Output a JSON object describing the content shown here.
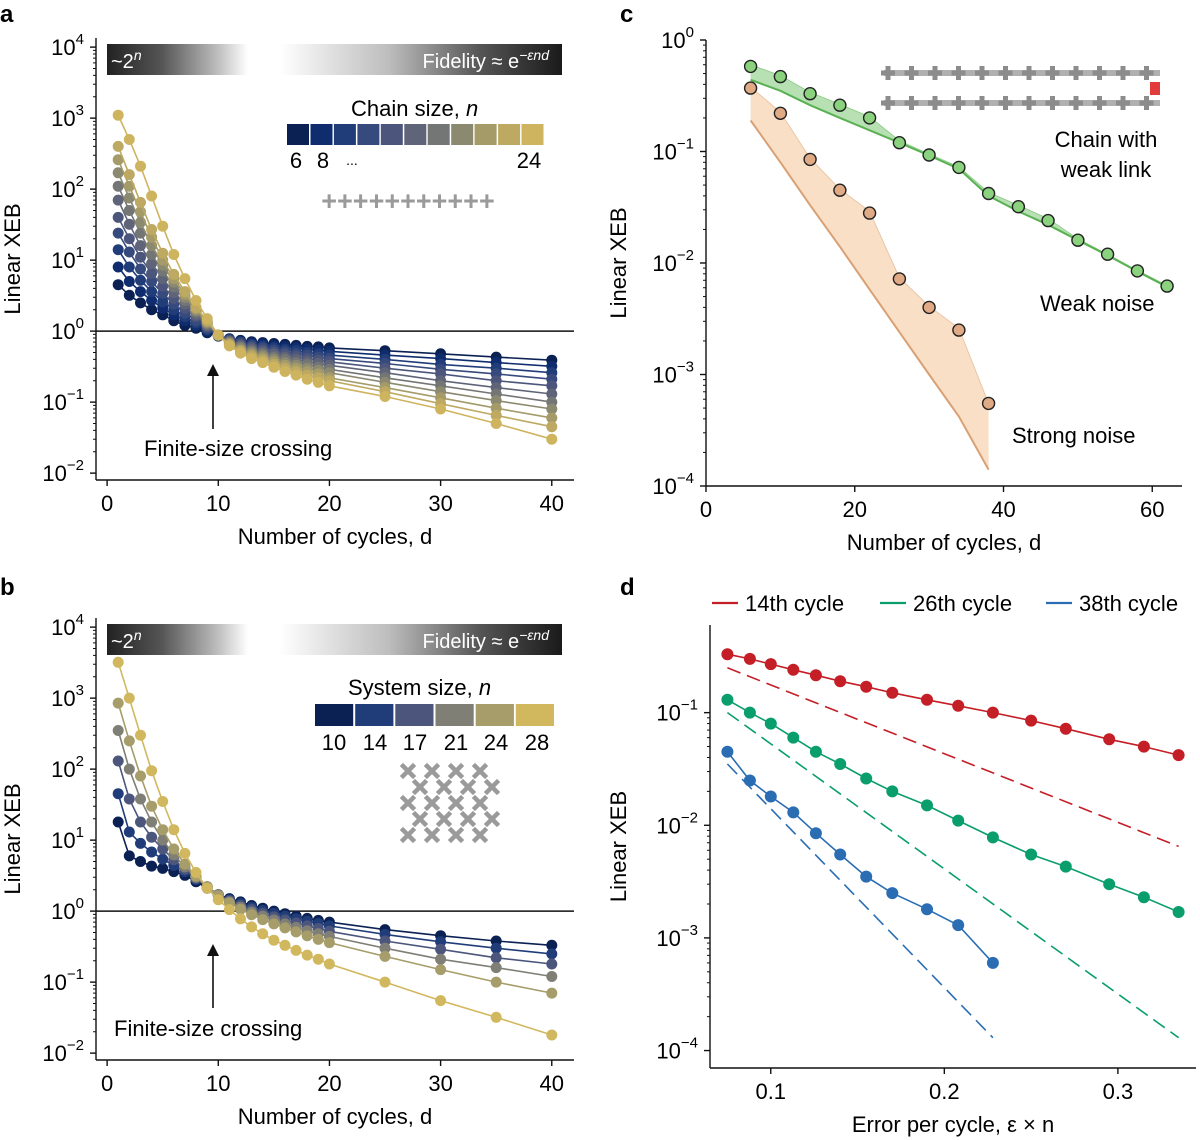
{
  "colors": {
    "panel_a_palette": [
      "#0b2153",
      "#0f2d6e",
      "#213d79",
      "#374a7d",
      "#4c567c",
      "#5f6478",
      "#737674",
      "#8b8970",
      "#a49b69",
      "#bea962",
      "#cfb45f"
    ],
    "panel_b_palette": [
      "#0b2153",
      "#213d79",
      "#4c567c",
      "#807f76",
      "#a69d6a",
      "#d1b85f"
    ],
    "green_line": "#59b152",
    "green_fill": "#9fd59a",
    "green_marker": "#8ad27d",
    "orange_line": "#d9a074",
    "orange_fill": "#f7d4b1",
    "orange_marker": "#e0aa85",
    "red": "#c41e26",
    "teal": "#0a9e6c",
    "blue": "#2a6db3",
    "weak_link": "#e23b3b",
    "qubit_glyph": "#9a9a9a"
  },
  "panels": {
    "a": {
      "letter": "a",
      "banner_left": "~2",
      "banner_left_sup": "n",
      "banner_right": "Fidelity ≈ e",
      "banner_right_sup": "−εnd",
      "legend_title": "Chain size, ",
      "legend_title_var": "n",
      "legend_labels": [
        "6",
        "8",
        "...",
        "24"
      ],
      "annotation": "Finite-size crossing",
      "inset_glyph": "+++++++++++"
    },
    "b": {
      "letter": "b",
      "banner_left": "~2",
      "banner_left_sup": "n",
      "banner_right": "Fidelity ≈ e",
      "banner_right_sup": "−εnd",
      "legend_title": "System size, ",
      "legend_title_var": "n",
      "legend_labels": [
        "10",
        "14",
        "17",
        "21",
        "24",
        "28"
      ],
      "annotation": "Finite-size crossing"
    },
    "c": {
      "letter": "c",
      "chain_label_1": "Chain with",
      "chain_label_2": "weak link",
      "weak_label": "Weak noise",
      "strong_label": "Strong noise"
    },
    "d": {
      "letter": "d"
    }
  },
  "chart_data": [
    {
      "panel": "a",
      "type": "line",
      "xlabel": "Number of cycles, d",
      "ylabel": "Linear XEB",
      "xlim": [
        -1,
        42
      ],
      "ylim": [
        0.008,
        18000
      ],
      "yscale": "log",
      "x_ticks": [
        0,
        10,
        20,
        30,
        40
      ],
      "y_ticks": [
        0.01,
        0.1,
        1,
        10,
        100,
        1000,
        10000
      ],
      "y_tick_labels": [
        [
          "10",
          "−2"
        ],
        [
          "10",
          "−1"
        ],
        [
          "10",
          "0"
        ],
        [
          "10",
          "1"
        ],
        [
          "10",
          "2"
        ],
        [
          "10",
          "3"
        ],
        [
          "10",
          "4"
        ]
      ],
      "reference_line_y": 1,
      "x": [
        1,
        2,
        3,
        4,
        5,
        6,
        7,
        8,
        9,
        10,
        11,
        12,
        13,
        14,
        15,
        16,
        17,
        18,
        19,
        20,
        25,
        30,
        35,
        40
      ],
      "series": [
        {
          "values": [
            4.5,
            3.2,
            2.5,
            2.0,
            1.7,
            1.4,
            1.2,
            1.1,
            0.95,
            0.85,
            0.78,
            0.74,
            0.71,
            0.69,
            0.67,
            0.65,
            0.63,
            0.61,
            0.6,
            0.58,
            0.53,
            0.48,
            0.43,
            0.39
          ]
        },
        {
          "values": [
            8,
            5,
            3.6,
            2.7,
            2.1,
            1.7,
            1.4,
            1.2,
            1.0,
            0.86,
            0.77,
            0.72,
            0.68,
            0.65,
            0.62,
            0.6,
            0.58,
            0.56,
            0.54,
            0.52,
            0.46,
            0.41,
            0.36,
            0.32
          ]
        },
        {
          "values": [
            14,
            8,
            5.2,
            3.6,
            2.6,
            2.0,
            1.6,
            1.3,
            1.05,
            0.87,
            0.76,
            0.7,
            0.65,
            0.61,
            0.58,
            0.55,
            0.53,
            0.5,
            0.48,
            0.46,
            0.4,
            0.34,
            0.3,
            0.26
          ]
        },
        {
          "values": [
            24,
            13,
            7.5,
            5,
            3.4,
            2.4,
            1.8,
            1.4,
            1.1,
            0.88,
            0.75,
            0.68,
            0.62,
            0.58,
            0.54,
            0.51,
            0.48,
            0.46,
            0.43,
            0.41,
            0.35,
            0.29,
            0.25,
            0.21
          ]
        },
        {
          "values": [
            40,
            20,
            11,
            6.5,
            4.3,
            2.9,
            2.1,
            1.6,
            1.15,
            0.88,
            0.73,
            0.65,
            0.59,
            0.54,
            0.5,
            0.47,
            0.44,
            0.41,
            0.39,
            0.37,
            0.3,
            0.25,
            0.2,
            0.17
          ]
        },
        {
          "values": [
            70,
            32,
            16,
            9,
            5.5,
            3.5,
            2.4,
            1.7,
            1.2,
            0.88,
            0.72,
            0.62,
            0.56,
            0.51,
            0.47,
            0.43,
            0.4,
            0.37,
            0.35,
            0.33,
            0.26,
            0.2,
            0.16,
            0.13
          ]
        },
        {
          "values": [
            110,
            50,
            24,
            12,
            7,
            4.2,
            2.7,
            1.85,
            1.25,
            0.88,
            0.7,
            0.6,
            0.53,
            0.48,
            0.43,
            0.4,
            0.36,
            0.34,
            0.31,
            0.29,
            0.22,
            0.17,
            0.13,
            0.1
          ]
        },
        {
          "values": [
            170,
            75,
            34,
            16,
            8.5,
            4.9,
            3.0,
            1.95,
            1.3,
            0.88,
            0.68,
            0.57,
            0.5,
            0.45,
            0.4,
            0.36,
            0.33,
            0.3,
            0.28,
            0.26,
            0.19,
            0.14,
            0.105,
            0.08
          ]
        },
        {
          "values": [
            260,
            110,
            48,
            21,
            10,
            5.5,
            3.3,
            2.05,
            1.35,
            0.88,
            0.66,
            0.54,
            0.47,
            0.42,
            0.37,
            0.33,
            0.3,
            0.27,
            0.25,
            0.22,
            0.16,
            0.115,
            0.082,
            0.06
          ]
        },
        {
          "values": [
            400,
            160,
            65,
            27,
            12.5,
            6.3,
            3.6,
            2.15,
            1.4,
            0.88,
            0.64,
            0.52,
            0.44,
            0.39,
            0.34,
            0.3,
            0.27,
            0.24,
            0.22,
            0.2,
            0.14,
            0.095,
            0.065,
            0.045
          ]
        },
        {
          "values": [
            1100,
            500,
            210,
            80,
            30,
            12,
            5.5,
            2.7,
            1.5,
            0.88,
            0.62,
            0.49,
            0.41,
            0.36,
            0.31,
            0.27,
            0.24,
            0.21,
            0.19,
            0.17,
            0.12,
            0.08,
            0.05,
            0.03
          ]
        }
      ]
    },
    {
      "panel": "b",
      "type": "line",
      "xlabel": "Number of cycles, d",
      "ylabel": "Linear XEB",
      "xlim": [
        -1,
        42
      ],
      "ylim": [
        0.008,
        18000
      ],
      "yscale": "log",
      "x_ticks": [
        0,
        10,
        20,
        30,
        40
      ],
      "y_ticks": [
        0.01,
        0.1,
        1,
        10,
        100,
        1000,
        10000
      ],
      "y_tick_labels": [
        [
          "10",
          "−2"
        ],
        [
          "10",
          "−1"
        ],
        [
          "10",
          "0"
        ],
        [
          "10",
          "1"
        ],
        [
          "10",
          "2"
        ],
        [
          "10",
          "3"
        ],
        [
          "10",
          "4"
        ]
      ],
      "reference_line_y": 1,
      "x": [
        1,
        2,
        3,
        4,
        5,
        6,
        7,
        8,
        9,
        10,
        11,
        12,
        13,
        14,
        15,
        16,
        17,
        18,
        19,
        20,
        25,
        30,
        35,
        40
      ],
      "series": [
        {
          "values": [
            18,
            6,
            5,
            4.3,
            4,
            3.6,
            3.2,
            2.6,
            2.1,
            1.7,
            1.5,
            1.35,
            1.2,
            1.1,
            1.0,
            0.92,
            0.85,
            0.79,
            0.74,
            0.7,
            0.55,
            0.45,
            0.38,
            0.33
          ]
        },
        {
          "values": [
            45,
            13,
            9,
            6.8,
            5.4,
            4.4,
            3.6,
            2.8,
            2.2,
            1.7,
            1.45,
            1.28,
            1.13,
            1.02,
            0.93,
            0.85,
            0.78,
            0.72,
            0.67,
            0.62,
            0.47,
            0.37,
            0.3,
            0.25
          ]
        },
        {
          "values": [
            130,
            38,
            18,
            11,
            7.5,
            5.3,
            3.9,
            2.9,
            2.2,
            1.7,
            1.4,
            1.2,
            1.05,
            0.93,
            0.83,
            0.75,
            0.68,
            0.62,
            0.57,
            0.52,
            0.38,
            0.29,
            0.22,
            0.18
          ]
        },
        {
          "values": [
            350,
            100,
            38,
            18,
            10,
            6.2,
            4.2,
            3.0,
            2.2,
            1.7,
            1.35,
            1.13,
            0.97,
            0.85,
            0.75,
            0.66,
            0.59,
            0.53,
            0.48,
            0.44,
            0.3,
            0.21,
            0.16,
            0.12
          ]
        },
        {
          "values": [
            850,
            250,
            80,
            30,
            14,
            7.5,
            4.6,
            3.1,
            2.2,
            1.65,
            1.3,
            1.06,
            0.89,
            0.76,
            0.66,
            0.58,
            0.51,
            0.45,
            0.4,
            0.36,
            0.23,
            0.15,
            0.1,
            0.07
          ]
        },
        {
          "values": [
            3200,
            1000,
            300,
            95,
            35,
            14,
            6.5,
            3.5,
            2.1,
            1.45,
            1.05,
            0.78,
            0.6,
            0.48,
            0.39,
            0.33,
            0.28,
            0.24,
            0.21,
            0.18,
            0.1,
            0.055,
            0.032,
            0.018
          ]
        }
      ]
    },
    {
      "panel": "c",
      "type": "line",
      "xlabel": "Number of cycles, d",
      "ylabel": "Linear XEB",
      "xlim": [
        0,
        64
      ],
      "ylim": [
        0.0001,
        1
      ],
      "yscale": "log",
      "x_ticks": [
        0,
        20,
        40,
        60
      ],
      "y_ticks": [
        0.0001,
        0.001,
        0.01,
        0.1,
        1
      ],
      "y_tick_labels": [
        [
          "10",
          "−4"
        ],
        [
          "10",
          "−3"
        ],
        [
          "10",
          "−2"
        ],
        [
          "10",
          "−1"
        ],
        [
          "10",
          "0"
        ]
      ],
      "series": [
        {
          "name": "Weak noise",
          "x": [
            6,
            10,
            14,
            18,
            22,
            26,
            30,
            34,
            38,
            42,
            46,
            50,
            54,
            58,
            62
          ],
          "values": [
            0.58,
            0.47,
            0.33,
            0.26,
            0.2,
            0.12,
            0.093,
            0.072,
            0.042,
            0.032,
            0.024,
            0.016,
            0.012,
            0.0085,
            0.0062
          ],
          "band_x": [
            6,
            10,
            14,
            18,
            22,
            26,
            30,
            34,
            38,
            42,
            46,
            50,
            54,
            58,
            62
          ],
          "band_upper": [
            0.6,
            0.48,
            0.34,
            0.265,
            0.205,
            0.125,
            0.095,
            0.073,
            0.043,
            0.033,
            0.025,
            0.0165,
            0.012,
            0.0086,
            0.0063
          ],
          "band_lower": [
            0.44,
            0.35,
            0.26,
            0.2,
            0.155,
            0.12,
            0.092,
            0.07,
            0.04,
            0.029,
            0.022,
            0.016,
            0.0117,
            0.0084,
            0.0061
          ]
        },
        {
          "name": "Strong noise",
          "x": [
            6,
            10,
            14,
            18,
            22,
            26,
            30,
            34,
            38
          ],
          "values": [
            0.37,
            0.22,
            0.085,
            0.045,
            0.028,
            0.0072,
            0.004,
            0.0025,
            0.00055
          ],
          "band_x": [
            6,
            10,
            14,
            18,
            22,
            26,
            30,
            34,
            38
          ],
          "band_upper": [
            0.38,
            0.225,
            0.087,
            0.046,
            0.029,
            0.0074,
            0.0041,
            0.0026,
            0.00055
          ],
          "band_lower": [
            0.19,
            0.08,
            0.033,
            0.014,
            0.0058,
            0.0024,
            0.001,
            0.00042,
            0.00014
          ]
        }
      ]
    },
    {
      "panel": "d",
      "type": "line",
      "xlabel": "Error per cycle, ε × n",
      "ylabel": "Linear XEB",
      "xlim": [
        0.065,
        0.345
      ],
      "ylim": [
        7e-05,
        0.6
      ],
      "yscale": "log",
      "x_ticks": [
        0.1,
        0.2,
        0.3
      ],
      "y_ticks": [
        0.0001,
        0.001,
        0.01,
        0.1
      ],
      "y_tick_labels": [
        [
          "10",
          "−4"
        ],
        [
          "10",
          "−3"
        ],
        [
          "10",
          "−2"
        ],
        [
          "10",
          "−1"
        ]
      ],
      "series": [
        {
          "name": "14th cycle",
          "x": [
            0.075,
            0.088,
            0.1,
            0.113,
            0.126,
            0.14,
            0.155,
            0.17,
            0.19,
            0.208,
            0.228,
            0.25,
            0.27,
            0.295,
            0.315,
            0.335
          ],
          "values": [
            0.33,
            0.3,
            0.27,
            0.24,
            0.215,
            0.19,
            0.17,
            0.15,
            0.13,
            0.115,
            0.1,
            0.085,
            0.072,
            0.058,
            0.05,
            0.042
          ],
          "dashed_x": [
            0.075,
            0.335
          ],
          "dashed_values": [
            0.25,
            0.0065
          ]
        },
        {
          "name": "26th cycle",
          "x": [
            0.075,
            0.088,
            0.1,
            0.113,
            0.126,
            0.14,
            0.155,
            0.17,
            0.19,
            0.208,
            0.228,
            0.25,
            0.27,
            0.295,
            0.315,
            0.335
          ],
          "values": [
            0.13,
            0.1,
            0.08,
            0.06,
            0.045,
            0.035,
            0.026,
            0.02,
            0.015,
            0.011,
            0.0078,
            0.0055,
            0.0043,
            0.003,
            0.0023,
            0.0017
          ],
          "dashed_x": [
            0.075,
            0.335
          ],
          "dashed_values": [
            0.1,
            0.00013
          ]
        },
        {
          "name": "38th cycle",
          "x": [
            0.075,
            0.088,
            0.1,
            0.113,
            0.126,
            0.14,
            0.155,
            0.17,
            0.19,
            0.208,
            0.228
          ],
          "values": [
            0.045,
            0.025,
            0.018,
            0.013,
            0.0085,
            0.0055,
            0.0035,
            0.0025,
            0.0018,
            0.0013,
            0.0006
          ],
          "dashed_x": [
            0.075,
            0.228
          ],
          "dashed_values": [
            0.035,
            0.00013
          ]
        }
      ]
    }
  ]
}
